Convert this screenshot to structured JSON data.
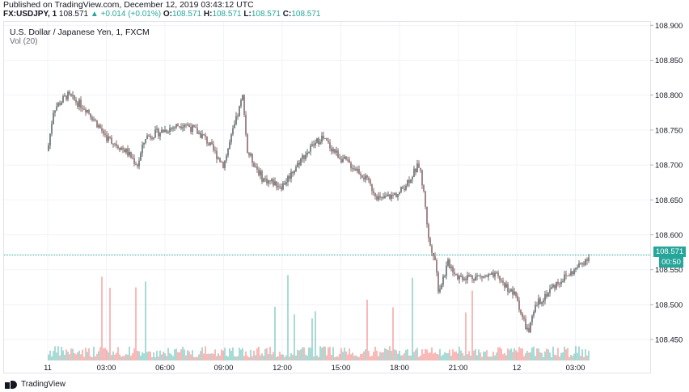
{
  "header": {
    "published": "Published on TradingView.com, December 12, 2019 03:43:12 UTC",
    "symbol": "FX:USDJPY, 1",
    "last": "108.571",
    "change_arrow": "▲",
    "change": "+0.014 (+0.01%)",
    "o_label": "O:",
    "o_value": "108.571",
    "h_label": "H:",
    "h_value": "108.571",
    "l_label": "L:",
    "l_value": "108.571",
    "c_label": "C:",
    "c_value": "108.571"
  },
  "legend": {
    "title": "U.S. Dollar / Japanese Yen, 1, FXCM",
    "volume": "Vol (20)"
  },
  "price_tag": "108.571",
  "countdown_tag": "00:50",
  "footer": {
    "brand": "TradingView"
  },
  "colors": {
    "up": "#26a69a",
    "down": "#ef5350",
    "grid": "#f0f3fa",
    "text": "#131722"
  },
  "chart_data": {
    "type": "candlestick",
    "ylim": [
      108.42,
      108.905
    ],
    "y_ticks": [
      "108.900",
      "108.850",
      "108.800",
      "108.750",
      "108.700",
      "108.650",
      "108.600",
      "108.550",
      "108.500",
      "108.450"
    ],
    "x_ticks": [
      "11",
      "03:00",
      "06:00",
      "09:00",
      "12:00",
      "15:00",
      "18:00",
      "21:00",
      "12",
      "03:00"
    ],
    "last_price": 108.571,
    "price_path": {
      "x_hours": [
        0,
        0.3,
        1,
        2,
        3,
        4,
        4.6,
        5,
        6,
        7,
        8,
        9,
        10,
        10.2,
        11,
        12,
        13,
        14,
        15,
        16,
        17,
        18,
        19,
        19.3,
        19.5,
        19.8,
        20,
        20.5,
        21,
        22,
        23,
        24,
        24.3,
        24.6,
        25,
        26,
        27,
        27.73
      ],
      "y_price": [
        108.72,
        108.78,
        108.8,
        108.78,
        108.74,
        108.72,
        108.7,
        108.74,
        108.75,
        108.76,
        108.74,
        108.7,
        108.8,
        108.72,
        108.68,
        108.67,
        108.71,
        108.74,
        108.71,
        108.69,
        108.65,
        108.66,
        108.7,
        108.65,
        108.59,
        108.57,
        108.52,
        108.56,
        108.54,
        108.54,
        108.54,
        108.51,
        108.48,
        108.46,
        108.5,
        108.53,
        108.55,
        108.571
      ]
    },
    "volume": {
      "series": "Vol (20)",
      "colors": [
        "#26a69a",
        "#ef5350"
      ]
    }
  }
}
